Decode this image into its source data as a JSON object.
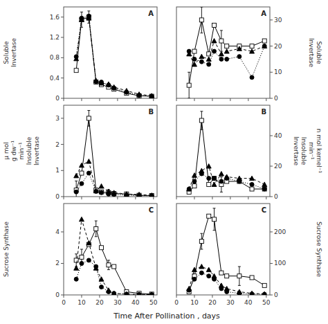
{
  "chart_data": [
    {
      "type": "line",
      "title": "A",
      "ylabel": [
        "Soluble",
        "Invertase"
      ],
      "x": [
        7,
        10,
        14,
        18,
        21,
        25,
        28,
        35,
        42,
        49
      ],
      "xlim": [
        0,
        52
      ],
      "xticks": [
        0,
        10,
        20,
        30,
        40,
        50
      ],
      "ylim": [
        0,
        1.8
      ],
      "yticks": [
        0,
        0.4,
        0.8,
        1.2,
        1.6
      ],
      "grid": false,
      "tick_labels": "y",
      "series": [
        {
          "color": "black",
          "marker": "open-square",
          "line_style": "solid",
          "values": [
            0.55,
            1.55,
            1.6,
            0.32,
            0.27,
            0.22,
            0.18,
            0.1,
            0.05,
            0.04
          ],
          "error": [
            null,
            0.15,
            0.12,
            null,
            null,
            null,
            null,
            null,
            null,
            null
          ]
        },
        {
          "color": "black",
          "marker": "filled-triangle",
          "line_style": "dashed",
          "values": [
            0.78,
            1.55,
            1.58,
            0.35,
            0.3,
            0.28,
            0.22,
            0.15,
            0.08,
            0.05
          ]
        },
        {
          "color": "black",
          "marker": "filled-circle",
          "line_style": "dotted",
          "values": [
            0.82,
            1.58,
            1.62,
            0.33,
            0.32,
            0.26,
            0.2,
            0.12,
            0.06,
            0.04
          ]
        }
      ]
    },
    {
      "type": "line",
      "title": "A",
      "ylabel": [
        "Soluble",
        "Invertase"
      ],
      "x": [
        7,
        10,
        14,
        18,
        21,
        25,
        28,
        35,
        42,
        49
      ],
      "xlim": [
        0,
        52
      ],
      "xticks": [
        0,
        10,
        20,
        30,
        40,
        50
      ],
      "ylim": [
        0,
        35
      ],
      "yticks": [
        0,
        10,
        20,
        30
      ],
      "grid": false,
      "tick_labels": "y",
      "series": [
        {
          "color": "black",
          "marker": "open-square",
          "line_style": "solid",
          "values": [
            5.0,
            18.0,
            30.0,
            17.0,
            28.0,
            22.0,
            20.0,
            20.0,
            20.0,
            22.0
          ],
          "error": [
            5.0,
            null,
            5.0,
            null,
            null,
            4.0,
            null,
            null,
            null,
            null
          ]
        },
        {
          "color": "black",
          "marker": "filled-triangle",
          "line_style": "dashed",
          "values": [
            17.0,
            13.0,
            16.0,
            15.0,
            22.0,
            17.0,
            18.0,
            19.0,
            18.0,
            20.0
          ]
        },
        {
          "color": "black",
          "marker": "filled-circle",
          "line_style": "dotted",
          "values": [
            18.0,
            15.0,
            14.0,
            13.0,
            18.0,
            15.0,
            15.0,
            16.0,
            8.0,
            20.0
          ]
        }
      ]
    },
    {
      "type": "line",
      "title": "B",
      "ylabel": [
        "µ mol",
        "g dw⁻¹",
        "min⁻¹",
        "Insoluble",
        "Invertase"
      ],
      "x": [
        7,
        10,
        14,
        18,
        21,
        25,
        28,
        35,
        42,
        49
      ],
      "xlim": [
        0,
        52
      ],
      "xticks": [
        0,
        10,
        20,
        30,
        40,
        50
      ],
      "ylim": [
        0,
        3.5
      ],
      "yticks": [
        0,
        1,
        2,
        3
      ],
      "grid": false,
      "tick_labels": "y",
      "series": [
        {
          "color": "black",
          "marker": "open-square",
          "line_style": "solid",
          "values": [
            0.25,
            0.9,
            3.0,
            0.25,
            0.18,
            0.15,
            0.12,
            0.1,
            0.05,
            0.04
          ],
          "error": [
            0.35,
            null,
            0.3,
            null,
            null,
            0.12,
            null,
            null,
            null,
            null
          ]
        },
        {
          "color": "black",
          "marker": "filled-triangle",
          "line_style": "dashed",
          "values": [
            0.8,
            1.2,
            1.35,
            0.22,
            0.4,
            0.2,
            0.15,
            0.1,
            0.08,
            0.05
          ]
        },
        {
          "color": "black",
          "marker": "filled-circle",
          "line_style": "dotted",
          "values": [
            0.18,
            0.5,
            0.9,
            0.2,
            0.15,
            0.1,
            0.08,
            0.06,
            0.04,
            0.03
          ]
        }
      ]
    },
    {
      "type": "line",
      "title": "B",
      "ylabel": [
        "n mol  kernel⁻¹",
        "min⁻¹",
        "Insoluble",
        "Invertase"
      ],
      "x": [
        7,
        10,
        14,
        18,
        21,
        25,
        28,
        35,
        42,
        49
      ],
      "xlim": [
        0,
        52
      ],
      "xticks": [
        0,
        10,
        20,
        30,
        40,
        50
      ],
      "ylim": [
        0,
        60
      ],
      "yticks": [
        0,
        20,
        40
      ],
      "grid": false,
      "tick_labels": "y",
      "series": [
        {
          "color": "black",
          "marker": "open-square",
          "line_style": "solid",
          "values": [
            3.0,
            7.0,
            50.0,
            8.0,
            12.0,
            8.0,
            10.0,
            10.0,
            5.0,
            5.0
          ],
          "error": [
            null,
            null,
            6.0,
            null,
            null,
            5.0,
            null,
            null,
            null,
            null
          ]
        },
        {
          "color": "black",
          "marker": "filled-triangle",
          "line_style": "dashed",
          "values": [
            5.0,
            14.0,
            17.0,
            20.0,
            8.0,
            15.0,
            13.0,
            12.0,
            12.0,
            8.0
          ]
        },
        {
          "color": "black",
          "marker": "filled-circle",
          "line_style": "dotted",
          "values": [
            5.0,
            10.0,
            15.0,
            12.0,
            12.0,
            10.0,
            12.0,
            10.0,
            8.0,
            5.0
          ]
        }
      ]
    },
    {
      "type": "line",
      "title": "C",
      "ylabel": [
        "Sucrose Synthase"
      ],
      "xlabel": "Time After Pollination , days",
      "x": [
        7,
        10,
        14,
        18,
        21,
        25,
        28,
        35,
        42,
        49
      ],
      "xlim": [
        0,
        52
      ],
      "xticks": [
        0,
        10,
        20,
        30,
        40,
        50
      ],
      "ylim": [
        0,
        5.8
      ],
      "yticks": [
        0,
        2,
        4
      ],
      "grid": false,
      "tick_labels": true,
      "series": [
        {
          "color": "black",
          "marker": "open-square",
          "line_style": "solid",
          "values": [
            2.2,
            2.4,
            3.2,
            4.2,
            3.0,
            1.9,
            1.8,
            0.2,
            0.1,
            0.05
          ],
          "error": [
            0.4,
            0.5,
            null,
            0.5,
            null,
            0.3,
            null,
            null,
            null,
            null
          ]
        },
        {
          "color": "black",
          "marker": "filled-triangle",
          "line_style": "dashed",
          "values": [
            1.7,
            4.8,
            3.3,
            1.7,
            1.0,
            0.3,
            0.1,
            0.05,
            0.03,
            0.02
          ]
        },
        {
          "color": "black",
          "marker": "filled-circle",
          "line_style": "dotted",
          "values": [
            1.0,
            2.0,
            2.2,
            1.8,
            0.5,
            0.2,
            0.1,
            0.05,
            0.03,
            0.02
          ]
        }
      ]
    },
    {
      "type": "line",
      "title": "C",
      "ylabel": [
        "Sucrose Synthase"
      ],
      "x": [
        7,
        10,
        14,
        18,
        21,
        25,
        28,
        35,
        42,
        49
      ],
      "xlim": [
        0,
        52
      ],
      "xticks": [
        0,
        10,
        20,
        30,
        40,
        50
      ],
      "ylim": [
        0,
        290
      ],
      "yticks": [
        0,
        100,
        200
      ],
      "grid": false,
      "tick_labels": true,
      "series": [
        {
          "color": "black",
          "marker": "open-square",
          "line_style": "solid",
          "values": [
            10.0,
            60.0,
            170.0,
            250.0,
            240.0,
            70.0,
            60.0,
            60.0,
            55.0,
            30.0
          ],
          "error": [
            null,
            null,
            25.0,
            null,
            35.0,
            null,
            null,
            30.0,
            null,
            null
          ]
        },
        {
          "color": "black",
          "marker": "filled-triangle",
          "line_style": "dashed",
          "values": [
            20.0,
            80.0,
            90.0,
            80.0,
            60.0,
            30.0,
            20.0,
            10.0,
            5.0,
            3.0
          ]
        },
        {
          "color": "black",
          "marker": "filled-circle",
          "line_style": "dotted",
          "values": [
            15.0,
            50.0,
            70.0,
            60.0,
            50.0,
            20.0,
            10.0,
            5.0,
            3.0,
            2.0
          ]
        }
      ]
    }
  ]
}
